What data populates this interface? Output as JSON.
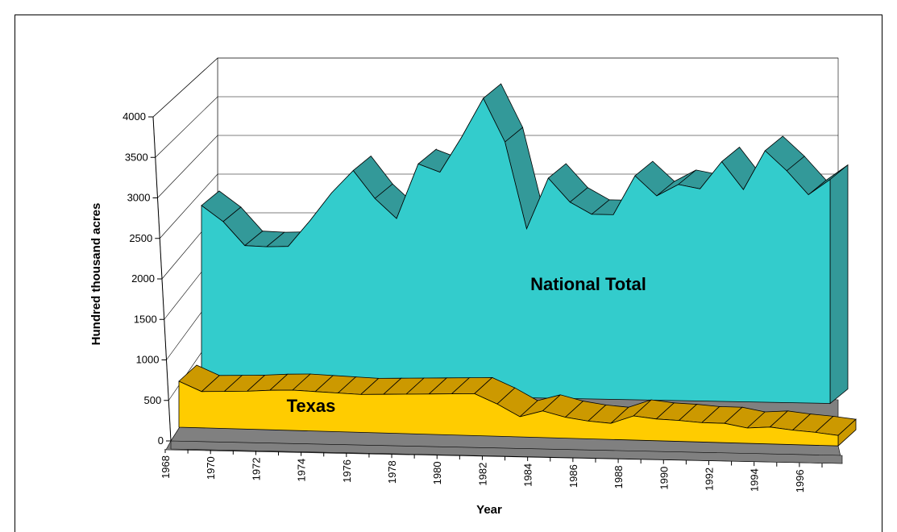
{
  "chart_data": {
    "type": "area3d",
    "xlabel": "Year",
    "ylabel": "Hundred thousand acres",
    "annotations": [
      "National Total",
      "Texas"
    ],
    "categories": [
      "1968",
      null,
      "1970",
      null,
      "1972",
      null,
      "1974",
      null,
      "1976",
      null,
      "1978",
      null,
      "1980",
      null,
      "1982",
      null,
      "1984",
      null,
      "1986",
      null,
      "1988",
      null,
      "1990",
      null,
      "1992",
      null,
      "1994",
      null,
      "1996",
      null
    ],
    "series": [
      {
        "name": "National Total",
        "color": "#33CCCC",
        "top_color": "#339999",
        "values": [
          2370,
          2170,
          1870,
          1860,
          1870,
          2200,
          2560,
          2850,
          2500,
          2250,
          2950,
          2850,
          3300,
          3800,
          3250,
          2150,
          2800,
          2500,
          2350,
          2350,
          2850,
          2600,
          2750,
          2700,
          3050,
          2700,
          3200,
          2950,
          2650,
          2850
        ]
      },
      {
        "name": "Texas",
        "color": "#FFCC00",
        "top_color": "#CC9900",
        "values": [
          570,
          450,
          460,
          470,
          490,
          500,
          490,
          480,
          470,
          480,
          490,
          500,
          510,
          520,
          400,
          250,
          330,
          260,
          220,
          200,
          300,
          270,
          260,
          240,
          240,
          190,
          210,
          180,
          160,
          130
        ]
      }
    ],
    "floor_color": "#808080",
    "ylim": [
      0,
      4000
    ],
    "yticks": [
      0,
      500,
      1000,
      1500,
      2000,
      2500,
      3000,
      3500,
      4000
    ],
    "grid": true
  }
}
